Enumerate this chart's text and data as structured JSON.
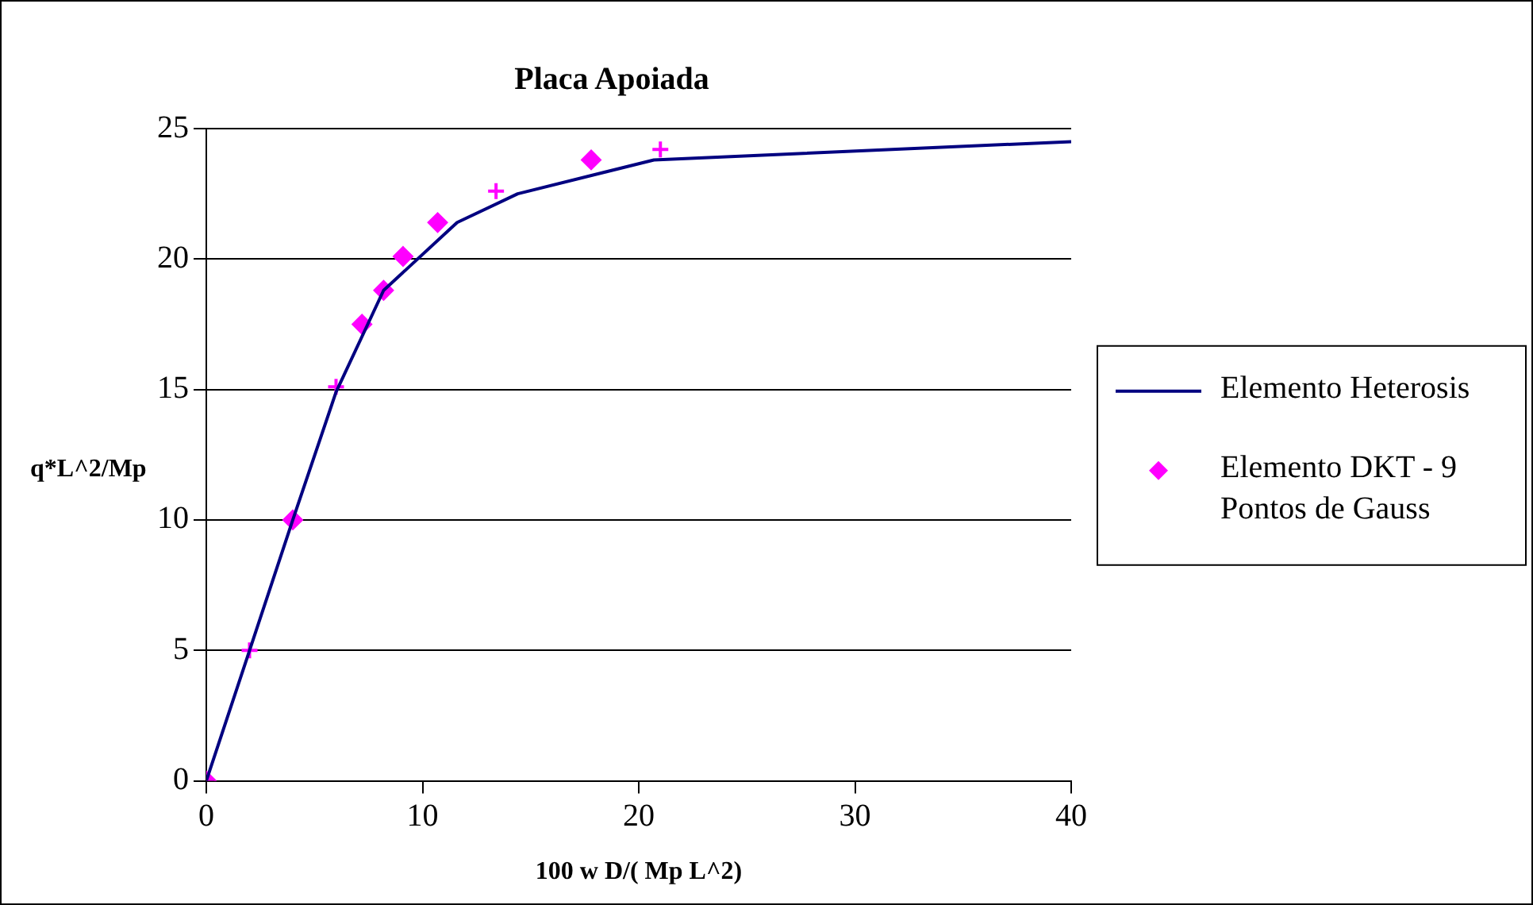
{
  "chart_data": {
    "type": "line",
    "title": "Placa Apoiada",
    "xlabel": "100 w D/( Mp L^2)",
    "ylabel": "q*L^2/Mp",
    "xlim": [
      0,
      40
    ],
    "xticks": [
      0,
      10,
      20,
      30,
      40
    ],
    "ylim": [
      0,
      25
    ],
    "yticks": [
      0,
      5,
      10,
      15,
      20,
      25
    ],
    "grid": "y",
    "legend": "right",
    "series": [
      {
        "name": "Elemento Heterosis",
        "color": "#000080",
        "marker": "none",
        "line_style": "solid",
        "x": [
          0,
          2,
          4,
          6,
          8.2,
          11.6,
          14.4,
          20.7,
          40
        ],
        "values": [
          0,
          5,
          10,
          14.9,
          18.8,
          21.4,
          22.5,
          23.8,
          24.5
        ]
      },
      {
        "name": "Elemento DKT - 9 Pontos de Gauss",
        "type": "scatter",
        "color": "#ff00ff",
        "marker": "diamond",
        "x": [
          0,
          4,
          7.2,
          8.2,
          9.1,
          10.7,
          17.8
        ],
        "values": [
          0,
          10,
          17.5,
          18.8,
          20.1,
          21.4,
          23.8
        ]
      },
      {
        "type": "scatter",
        "color": "#ff00ff",
        "marker": "cross",
        "x": [
          2,
          6,
          13.4,
          21
        ],
        "values": [
          5,
          15.1,
          22.6,
          24.2
        ]
      }
    ]
  }
}
